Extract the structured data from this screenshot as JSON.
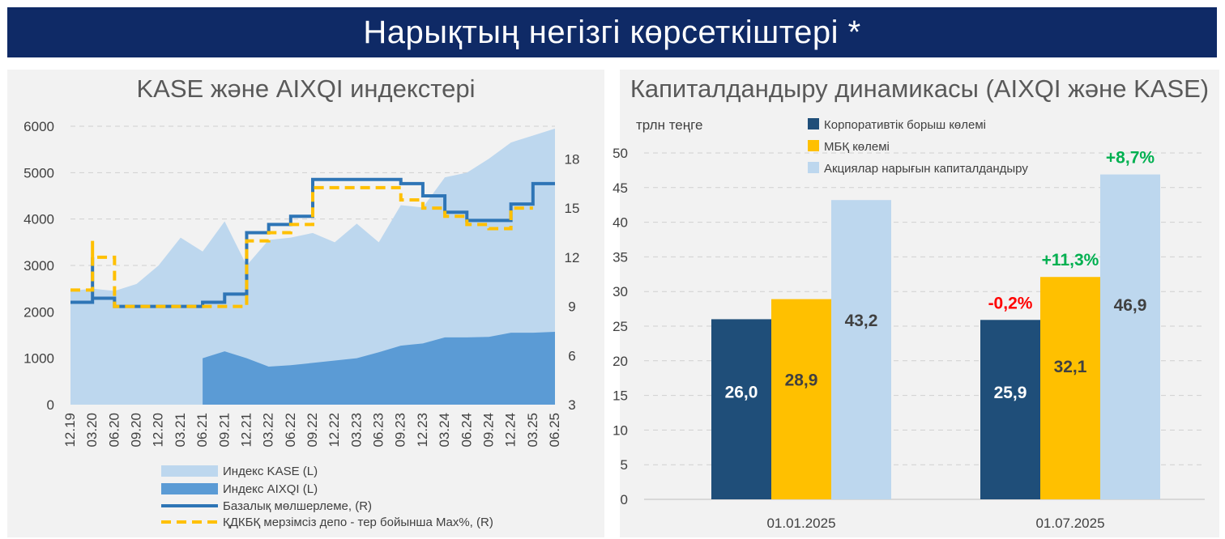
{
  "banner_title": "Нарықтың негізгі көрсеткіштері *",
  "colors": {
    "banner_bg": "#0f2a66",
    "kase_area": "#bdd7ee",
    "aixqi_area": "#5b9bd5",
    "base_rate": "#2e75b6",
    "deposit_rate": "#ffc000",
    "corporate_debt": "#1f4e79",
    "gov_securities": "#ffc000",
    "equity_cap": "#bdd7ee",
    "positive_change": "#00b050",
    "negative_change": "#ff0000"
  },
  "chart_data": [
    {
      "type": "area",
      "title": "KASE және AIXQI индекстері",
      "categories": [
        "12.19",
        "03.20",
        "06.20",
        "09.20",
        "12.20",
        "03.21",
        "06.21",
        "09.21",
        "12.21",
        "03.22",
        "06.22",
        "09.22",
        "12.22",
        "03.23",
        "06.23",
        "09.23",
        "12.23",
        "03.24",
        "06.24",
        "09.24",
        "12.24",
        "03.25",
        "06.25"
      ],
      "y_left": {
        "ticks": [
          "0",
          "1000",
          "2000",
          "3000",
          "4000",
          "5000",
          "6000"
        ],
        "ylim": [
          0,
          6000
        ]
      },
      "y_right": {
        "ticks": [
          "3",
          "6",
          "9",
          "12",
          "15",
          "18"
        ],
        "ylim": [
          3,
          20
        ]
      },
      "series": [
        {
          "name": "Индекс KASE (L)",
          "axis": "left",
          "type": "area",
          "values": [
            2450,
            2500,
            2450,
            2600,
            3000,
            3600,
            3300,
            3950,
            3000,
            3550,
            3600,
            3700,
            3500,
            3900,
            3500,
            4300,
            4250,
            4900,
            5000,
            5300,
            5650,
            5800,
            5950
          ]
        },
        {
          "name": "Индекс AIXQI (L)",
          "axis": "left",
          "type": "area",
          "values": [
            null,
            null,
            null,
            null,
            null,
            null,
            1000,
            1150,
            1000,
            820,
            850,
            900,
            950,
            1000,
            1130,
            1270,
            1320,
            1450,
            1450,
            1460,
            1550,
            1550,
            1570
          ]
        },
        {
          "name": "Базалық мөлшерлеме, (R)",
          "axis": "right",
          "type": "step",
          "points": [
            [
              "12.19",
              9.25
            ],
            [
              "03.20",
              12
            ],
            [
              "03.20",
              9.5
            ],
            [
              "06.20",
              9
            ],
            [
              "06.21",
              9.25
            ],
            [
              "09.21",
              9.75
            ],
            [
              "12.21",
              10.25
            ],
            [
              "12.21",
              13.5
            ],
            [
              "03.22",
              14
            ],
            [
              "06.22",
              14.5
            ],
            [
              "09.22",
              16.75
            ],
            [
              "06.23",
              16.75
            ],
            [
              "09.23",
              16.5
            ],
            [
              "12.23",
              15.75
            ],
            [
              "03.24",
              14.75
            ],
            [
              "06.24",
              14.25
            ],
            [
              "09.24",
              14.25
            ],
            [
              "12.24",
              15.25
            ],
            [
              "03.25",
              16.5
            ],
            [
              "06.25",
              16.5
            ]
          ]
        },
        {
          "name": "ҚДКБҚ мерзімсіз депо - тер бойынша Max%, (R)",
          "axis": "right",
          "type": "step",
          "points": [
            [
              "12.19",
              10
            ],
            [
              "03.20",
              13
            ],
            [
              "03.20",
              12
            ],
            [
              "06.20",
              9
            ],
            [
              "09.21",
              9
            ],
            [
              "12.21",
              10
            ],
            [
              "12.21",
              13
            ],
            [
              "03.22",
              13.5
            ],
            [
              "06.22",
              14
            ],
            [
              "09.22",
              16.25
            ],
            [
              "06.23",
              16.25
            ],
            [
              "09.23",
              15.5
            ],
            [
              "12.23",
              15
            ],
            [
              "03.24",
              14.5
            ],
            [
              "06.24",
              14
            ],
            [
              "09.24",
              13.75
            ],
            [
              "12.24",
              15
            ],
            [
              "03.25",
              15
            ]
          ]
        }
      ],
      "legend": [
        "Индекс KASE (L)",
        "Индекс AIXQI (L)",
        "Базалық мөлшерлеме, (R)",
        "ҚДКБҚ мерзімсіз депо - тер бойынша Max%, (R)"
      ]
    },
    {
      "type": "bar",
      "title": "Капиталдандыру динамикасы (AIXQI және KASE)",
      "ylabel": "трлн теңге",
      "categories": [
        "01.01.2025",
        "01.07.2025"
      ],
      "ylim": [
        0,
        50
      ],
      "y_ticks": [
        "0",
        "5",
        "10",
        "15",
        "20",
        "25",
        "30",
        "35",
        "40",
        "45",
        "50"
      ],
      "series": [
        {
          "name": "Корпоративтік борыш көлемі",
          "values": [
            26.0,
            25.9
          ],
          "labels": [
            "26,0",
            "25,9"
          ],
          "change": "-0,2%"
        },
        {
          "name": "МБҚ көлемі",
          "values": [
            28.9,
            32.1
          ],
          "labels": [
            "28,9",
            "32,1"
          ],
          "change": "+11,3%"
        },
        {
          "name": "Акциялар нарығын капиталдандыру",
          "values": [
            43.2,
            46.9
          ],
          "labels": [
            "43,2",
            "46,9"
          ],
          "change": "+8,7%"
        }
      ]
    }
  ]
}
